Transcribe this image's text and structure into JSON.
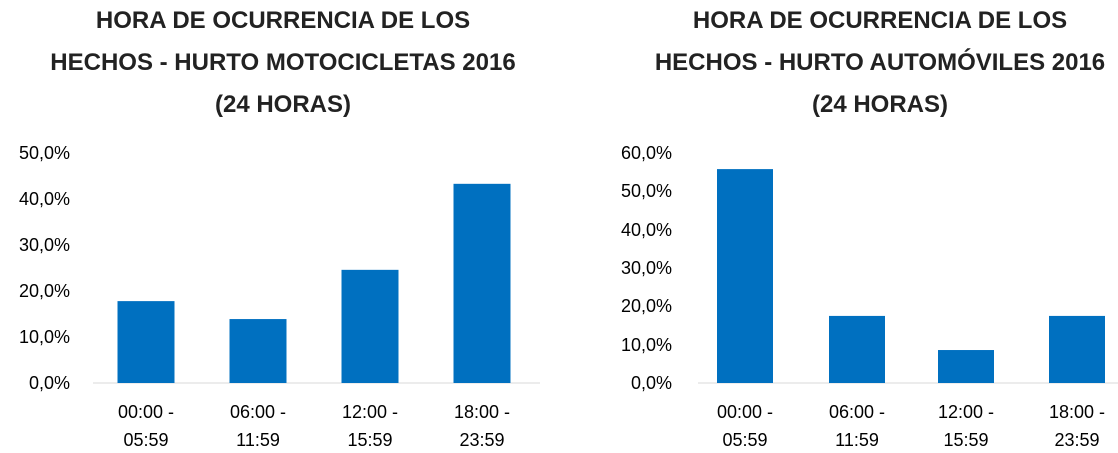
{
  "chart_data": [
    {
      "type": "bar",
      "title": "HORA DE OCURRENCIA DE LOS HECHOS - HURTO MOTOCICLETAS 2016 (24 HORAS)",
      "categories": [
        "00:00 - 05:59",
        "06:00 - 11:59",
        "12:00 - 15:59",
        "18:00 - 23:59"
      ],
      "values": [
        17.8,
        13.9,
        24.6,
        43.3
      ],
      "color": "#0070c0",
      "ylim": [
        0,
        50
      ],
      "yticks": [
        {
          "value": 0,
          "label": "0,0%"
        },
        {
          "value": 10,
          "label": "10,0%"
        },
        {
          "value": 20,
          "label": "20,0%"
        },
        {
          "value": 30,
          "label": "30,0%"
        },
        {
          "value": 40,
          "label": "40,0%"
        },
        {
          "value": 50,
          "label": "50,0%"
        }
      ],
      "grid": false
    },
    {
      "type": "bar",
      "title": "HORA DE OCURRENCIA DE LOS HECHOS - HURTO AUTOMÓVILES 2016 (24 HORAS)",
      "categories": [
        "00:00 - 05:59",
        "06:00 - 11:59",
        "12:00 - 15:59",
        "18:00 - 23:59"
      ],
      "values": [
        55.8,
        17.5,
        8.6,
        17.5
      ],
      "color": "#0070c0",
      "ylim": [
        0,
        60
      ],
      "yticks": [
        {
          "value": 0,
          "label": "0,0%"
        },
        {
          "value": 10,
          "label": "10,0%"
        },
        {
          "value": 20,
          "label": "20,0%"
        },
        {
          "value": 30,
          "label": "30,0%"
        },
        {
          "value": 40,
          "label": "40,0%"
        },
        {
          "value": 50,
          "label": "50,0%"
        },
        {
          "value": 60,
          "label": "60,0%"
        }
      ],
      "grid": false
    }
  ]
}
